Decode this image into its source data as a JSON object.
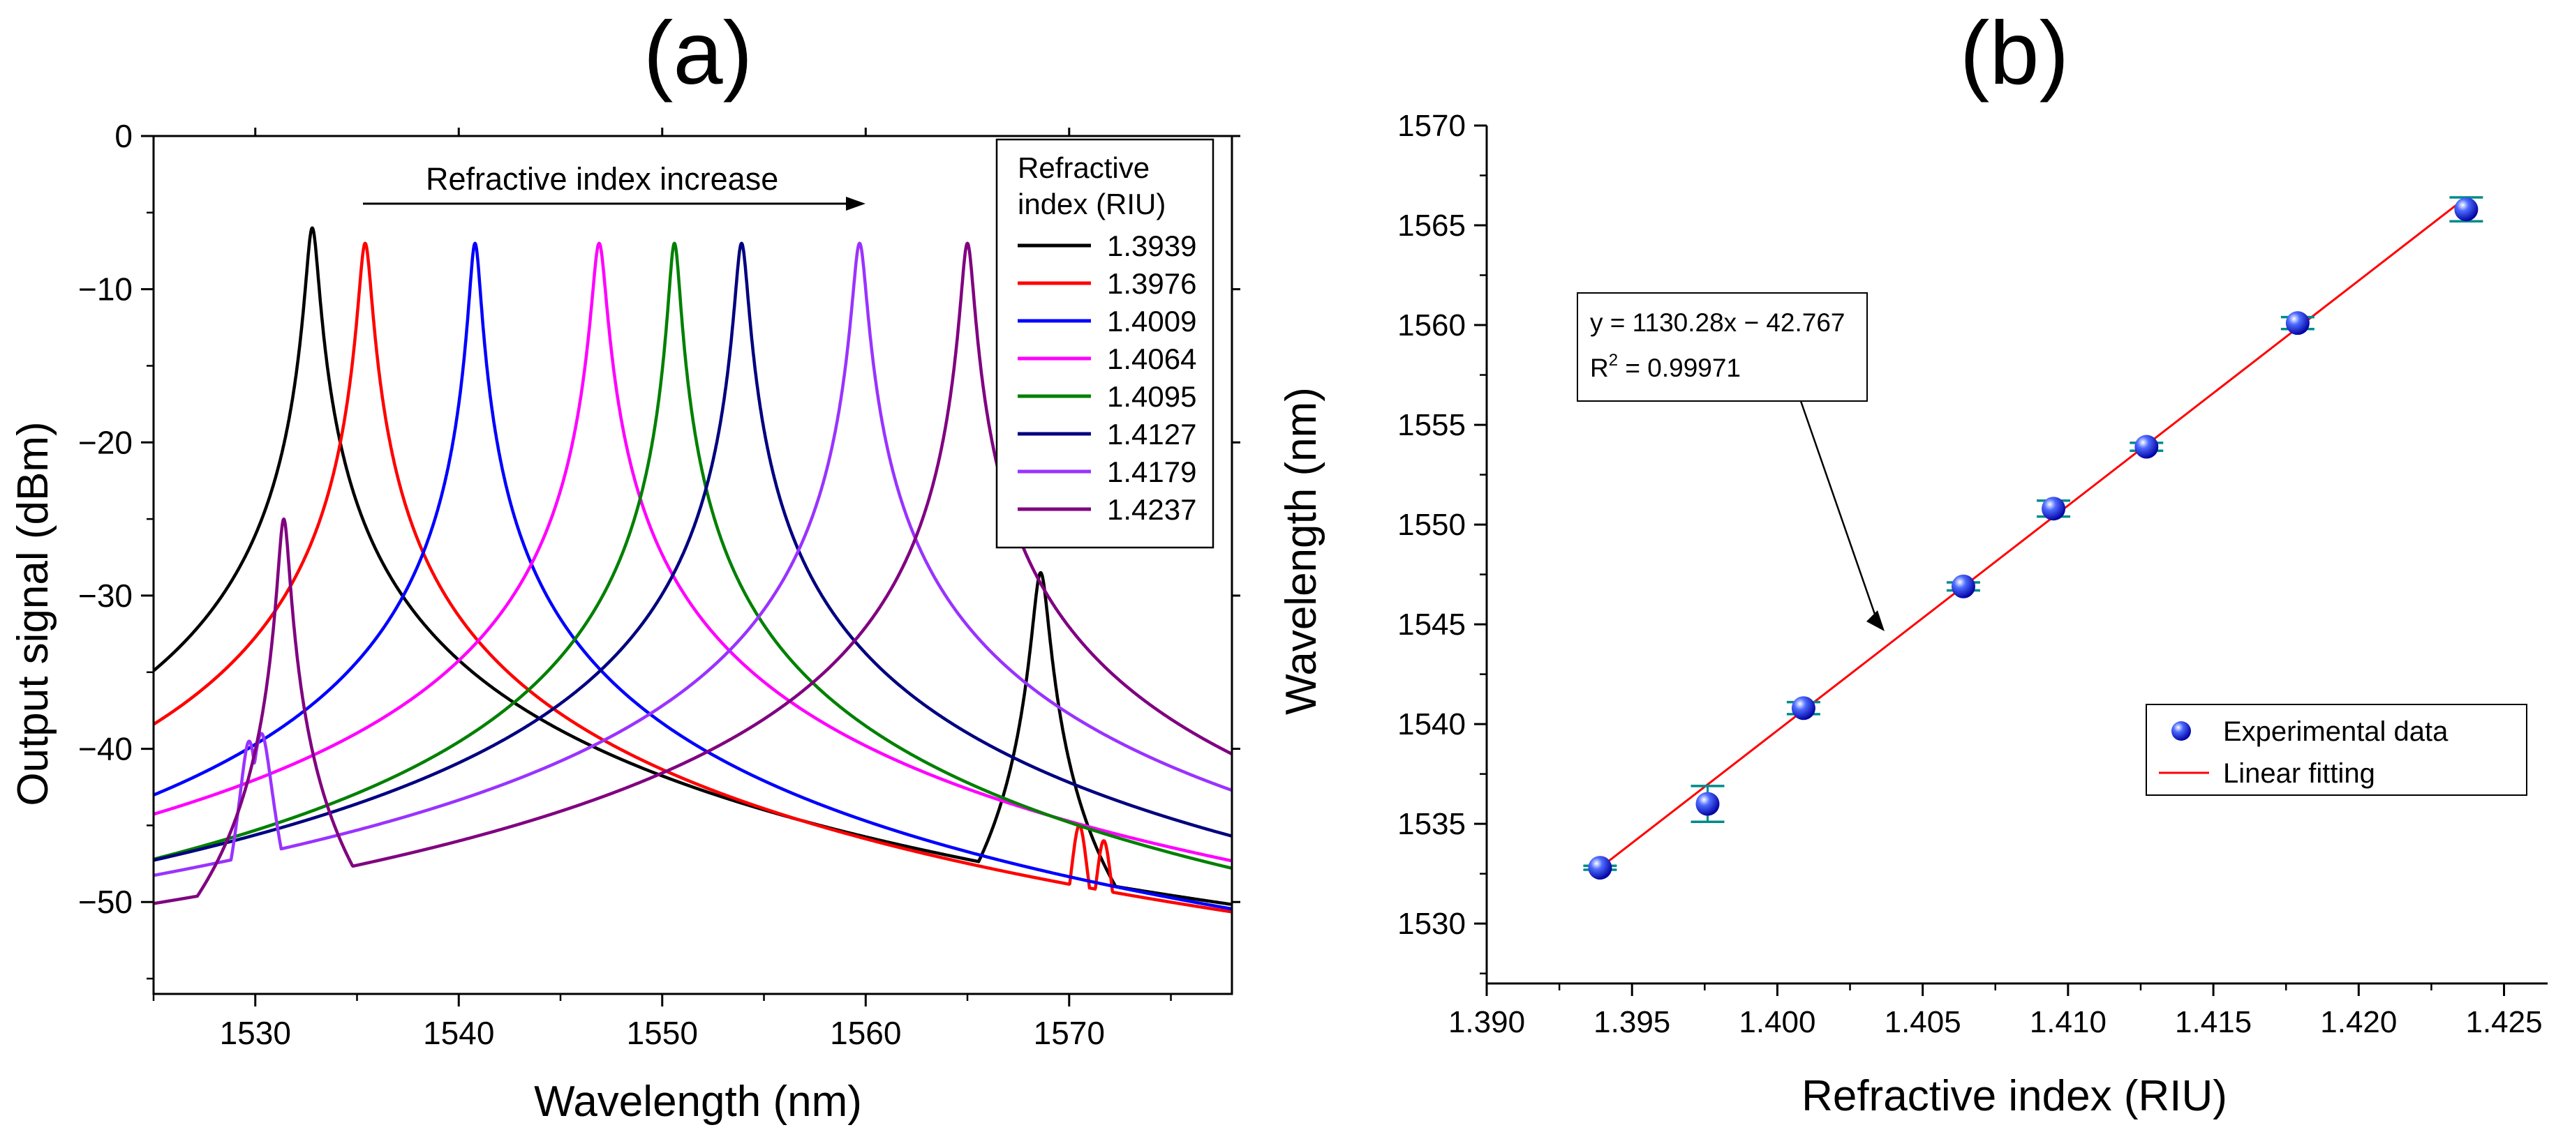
{
  "chart_data": [
    {
      "type": "line",
      "panel_label": "(a)",
      "title": "",
      "xlabel": "Wavelength (nm)",
      "ylabel": "Output signal (dBm)",
      "xlim": [
        1525,
        1578
      ],
      "ylim": [
        -56,
        0
      ],
      "xticks": [
        1530,
        1540,
        1550,
        1560,
        1570
      ],
      "yticks": [
        0,
        -10,
        -20,
        -30,
        -40,
        -50
      ],
      "annotation": "Refractive index increase",
      "legend": {
        "title_line1": "Refractive",
        "title_line2": "index (RIU)",
        "placement": "top-right"
      },
      "series": [
        {
          "name": "1.3939",
          "color": "#000000",
          "floor": -56,
          "peaks": [
            [
              1532.8,
              -6,
              0.28
            ],
            [
              1531.8,
              -45,
              0.6
            ],
            [
              1533.4,
              -37,
              0.15
            ],
            [
              1534.5,
              -51,
              0.5
            ],
            [
              1568.6,
              -28.5,
              0.35
            ],
            [
              1567.3,
              -47,
              0.8
            ],
            [
              1566,
              -51,
              1.6
            ],
            [
              1562,
              -53,
              3.0
            ],
            [
              1538.5,
              -55,
              1.0
            ]
          ]
        },
        {
          "name": "1.3976",
          "color": "#ff0000",
          "floor": -56,
          "peaks": [
            [
              1535.4,
              -7,
              0.28
            ],
            [
              1536.2,
              -50,
              0.6
            ],
            [
              1538.5,
              -55.2,
              1.6
            ],
            [
              1546,
              -53,
              5.5
            ],
            [
              1570.5,
              -45,
              0.4
            ],
            [
              1569.6,
              -50,
              0.5
            ],
            [
              1571.7,
              -46,
              0.4
            ],
            [
              1572.7,
              -50.5,
              0.7
            ],
            [
              1567.4,
              -52,
              1.2
            ],
            [
              1574.5,
              -55,
              1.2
            ],
            [
              1573.4,
              -53,
              0.9
            ]
          ]
        },
        {
          "name": "1.4009",
          "color": "#0000ff",
          "floor": -56,
          "peaks": [
            [
              1540.8,
              -7,
              0.25
            ],
            [
              1540.1,
              -34.5,
              0.22
            ],
            [
              1541.5,
              -32,
              0.22
            ],
            [
              1542.0,
              -31,
              0.2
            ],
            [
              1539.3,
              -49.5,
              0.3
            ],
            [
              1542.7,
              -46.5,
              0.22
            ],
            [
              1543.3,
              -47.5,
              0.22
            ],
            [
              1538.3,
              -53,
              0.9
            ],
            [
              1544.5,
              -51,
              1.5
            ],
            [
              1549,
              -55,
              2.5
            ],
            [
              1562,
              -54.5,
              3.5
            ],
            [
              1576.5,
              -55,
              0.15
            ]
          ]
        },
        {
          "name": "1.4064",
          "color": "#ff00ff",
          "floor": -56,
          "peaks": [
            [
              1546.9,
              -7,
              0.3
            ],
            [
              1547.8,
              -33,
              0.22
            ],
            [
              1546.1,
              -38,
              0.4
            ],
            [
              1545.4,
              -46,
              0.5
            ],
            [
              1548.8,
              -48,
              0.4
            ],
            [
              1549.8,
              -51,
              0.8
            ],
            [
              1544,
              -50,
              1.4
            ],
            [
              1541,
              -54,
              2.2
            ],
            [
              1553,
              -54,
              2.2
            ],
            [
              1558,
              -55,
              2
            ]
          ]
        },
        {
          "name": "1.4095",
          "color": "#008000",
          "floor": -56,
          "peaks": [
            [
              1550.6,
              -7,
              0.25
            ],
            [
              1549.9,
              -47,
              0.35
            ],
            [
              1549.2,
              -48.5,
              0.25
            ],
            [
              1551.3,
              -40,
              0.25
            ],
            [
              1552.0,
              -52,
              0.3
            ],
            [
              1548.5,
              -53.5,
              0.5
            ],
            [
              1552.8,
              -54.5,
              0.35
            ]
          ]
        },
        {
          "name": "1.4127",
          "color": "#000080",
          "floor": -56,
          "peaks": [
            [
              1553.9,
              -7,
              0.28
            ],
            [
              1554.4,
              -22,
              0.45
            ],
            [
              1553.3,
              -33,
              0.45
            ],
            [
              1555.0,
              -31,
              0.2
            ],
            [
              1555.7,
              -40,
              0.4
            ],
            [
              1556.7,
              -46,
              0.8
            ],
            [
              1557,
              -51,
              0.3
            ],
            [
              1557.6,
              -52,
              0.3
            ],
            [
              1551,
              -53,
              3
            ],
            [
              1545,
              -55,
              3
            ],
            [
              1567,
              -54.5,
              4.5
            ]
          ]
        },
        {
          "name": "1.4179",
          "color": "#9933ff",
          "floor": -56,
          "peaks": [
            [
              1559.7,
              -7,
              0.3
            ],
            [
              1559.0,
              -38,
              0.4
            ],
            [
              1560.5,
              -42,
              0.4
            ],
            [
              1561.1,
              -47,
              0.4
            ],
            [
              1558.2,
              -50,
              0.5
            ],
            [
              1562.3,
              -51,
              0.8
            ],
            [
              1556,
              -54,
              2
            ],
            [
              1528.7,
              -48,
              1.2
            ],
            [
              1530.3,
              -39,
              0.45
            ],
            [
              1529.7,
              -39.5,
              0.4
            ],
            [
              1527.0,
              -53,
              1.0
            ]
          ]
        },
        {
          "name": "1.4237",
          "color": "#800080",
          "floor": -56,
          "peaks": [
            [
              1565.0,
              -7,
              0.28
            ],
            [
              1531.4,
              -25,
              0.25
            ],
            [
              1530.8,
              -35,
              0.35
            ],
            [
              1530.0,
              -41,
              0.5
            ],
            [
              1528.8,
              -47,
              0.8
            ],
            [
              1532.2,
              -44,
              0.4
            ],
            [
              1533,
              -50,
              0.6
            ],
            [
              1565.9,
              -40,
              0.4
            ],
            [
              1566.8,
              -45,
              0.6
            ],
            [
              1563.8,
              -47,
              0.5
            ],
            [
              1562.6,
              -51,
              0.8
            ],
            [
              1550.5,
              -52.3,
              9.0
            ],
            [
              1568.5,
              -52,
              1.2
            ]
          ]
        }
      ]
    },
    {
      "type": "scatter",
      "panel_label": "(b)",
      "title": "",
      "xlabel": "Refractive index (RIU)",
      "ylabel": "Wavelength (nm)",
      "xlim": [
        1.39,
        1.4265
      ],
      "ylim": [
        1527,
        1570
      ],
      "xticks": [
        "1.390",
        "1.395",
        "1.400",
        "1.405",
        "1.410",
        "1.415",
        "1.420",
        "1.425"
      ],
      "yticks": [
        1530,
        1535,
        1540,
        1545,
        1550,
        1555,
        1560,
        1565,
        1570
      ],
      "series": [
        {
          "name": "Experimental data",
          "kind": "points",
          "color": "#1a1aff",
          "x": [
            1.3939,
            1.3976,
            1.4009,
            1.4064,
            1.4095,
            1.4127,
            1.4179,
            1.4237
          ],
          "y": [
            1532.8,
            1536.0,
            1540.8,
            1546.9,
            1550.8,
            1553.9,
            1560.1,
            1565.8
          ],
          "yerr": [
            0.1,
            0.9,
            0.3,
            0.2,
            0.4,
            0.2,
            0.3,
            0.6
          ]
        },
        {
          "name": "Linear fitting",
          "kind": "line",
          "color": "#ff0000",
          "x": [
            1.3939,
            1.4237
          ],
          "y": [
            1532.8,
            1566.4
          ]
        }
      ],
      "fit": {
        "equation": "y = 1130.28x − 42.767",
        "r2_prefix": "R",
        "r2_sup": "2",
        "r2_value": " = 0.99971"
      },
      "legend": {
        "placement": "bottom-right"
      }
    }
  ]
}
